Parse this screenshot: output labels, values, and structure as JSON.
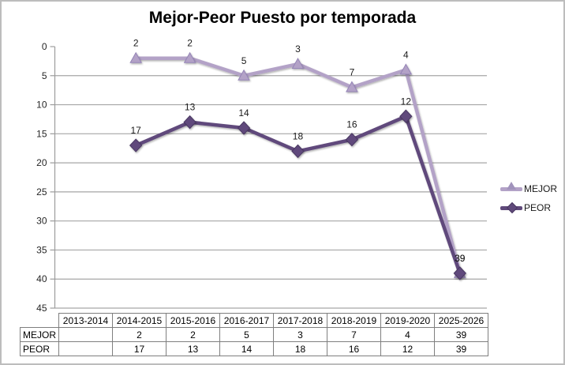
{
  "title": "Mejor-Peor Puesto por temporada",
  "chart_data": {
    "type": "line",
    "title": "Mejor-Peor Puesto por temporada",
    "categories": [
      "2013-2014",
      "2014-2015",
      "2015-2016",
      "2016-2017",
      "2017-2018",
      "2018-2019",
      "2019-2020",
      "2025-2026"
    ],
    "series": [
      {
        "name": "MEJOR",
        "values": [
          null,
          2,
          2,
          5,
          3,
          7,
          4,
          39
        ],
        "color": "#b3a2c7",
        "marker": "triangle",
        "marker_stroke": "#9484b6"
      },
      {
        "name": "PEOR",
        "values": [
          null,
          17,
          13,
          14,
          18,
          16,
          12,
          39
        ],
        "color": "#604a7b",
        "marker": "diamond",
        "marker_stroke": "#4a3862"
      }
    ],
    "y_axis": {
      "min": 0,
      "max": 45,
      "step": 5,
      "inverted": true,
      "ticks": [
        "0",
        "5",
        "10",
        "15",
        "20",
        "25",
        "30",
        "35",
        "40",
        "45"
      ]
    },
    "grid": true,
    "data_labels": true,
    "legend_position": "right",
    "xlabel": "",
    "ylabel": ""
  },
  "legend": {
    "items": [
      {
        "label": "MEJOR",
        "color": "#b3a2c7",
        "marker": "triangle"
      },
      {
        "label": "PEOR",
        "color": "#604a7b",
        "marker": "diamond"
      }
    ]
  },
  "table": {
    "columns": [
      "2013-2014",
      "2014-2015",
      "2015-2016",
      "2016-2017",
      "2017-2018",
      "2018-2019",
      "2019-2020",
      "2025-2026"
    ],
    "rows": [
      {
        "header": "MEJOR",
        "values": [
          "",
          "2",
          "2",
          "5",
          "3",
          "7",
          "4",
          "39"
        ]
      },
      {
        "header": "PEOR",
        "values": [
          "",
          "17",
          "13",
          "14",
          "18",
          "16",
          "12",
          "39"
        ]
      }
    ]
  },
  "colors": {
    "grid": "#a6a6a6",
    "axis": "#9c9c9c",
    "text": "#262626",
    "data_label": "#1a1a1a",
    "table_border": "#7f7f7f",
    "frame": "#bdbdbd",
    "background": "#ffffff"
  }
}
